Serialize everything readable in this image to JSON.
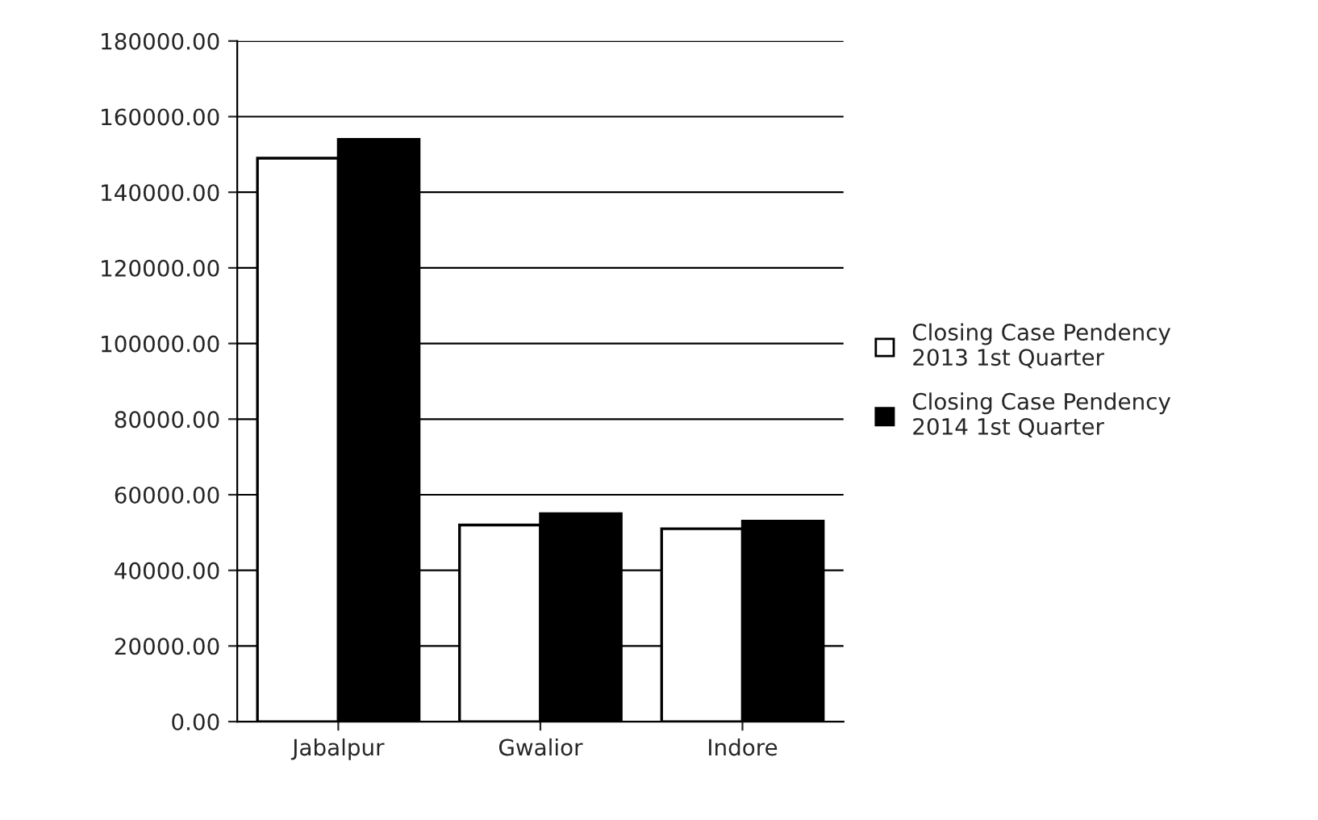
{
  "chart_data": {
    "type": "bar",
    "categories": [
      "Jabalpur",
      "Gwalior",
      "Indore"
    ],
    "series": [
      {
        "name": "Closing Case Pendency\n2013 1st Quarter",
        "color": "#ffffff",
        "values": [
          149000,
          52000,
          51000
        ]
      },
      {
        "name": "Closing Case Pendency\n2014 1st Quarter",
        "color": "#000000",
        "values": [
          154000,
          55000,
          53000
        ]
      }
    ],
    "ylim": [
      0,
      180000
    ],
    "yticks": [
      {
        "value": 0,
        "label": "0.00"
      },
      {
        "value": 20000,
        "label": "20000.00"
      },
      {
        "value": 40000,
        "label": "40000.00"
      },
      {
        "value": 60000,
        "label": "60000.00"
      },
      {
        "value": 80000,
        "label": "80000.00"
      },
      {
        "value": 100000,
        "label": "100000.00"
      },
      {
        "value": 120000,
        "label": "120000.00"
      },
      {
        "value": 140000,
        "label": "140000.00"
      },
      {
        "value": 160000,
        "label": "160000.00"
      },
      {
        "value": 180000,
        "label": "180000.00"
      }
    ],
    "grid": "y",
    "legend": "right"
  }
}
